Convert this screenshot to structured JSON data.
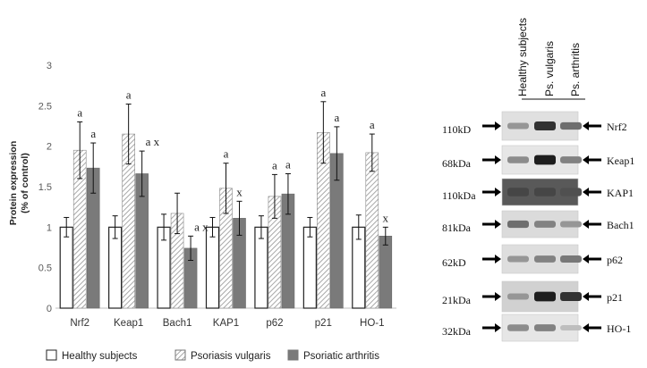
{
  "chart_data": {
    "type": "bar",
    "ylabel_line1": "Protein expression",
    "ylabel_line2": "(% of control)",
    "ylim": [
      0,
      3
    ],
    "yticks": [
      "0",
      "0.5",
      "1",
      "1.5",
      "2",
      "2.5",
      "3"
    ],
    "grid": false,
    "legend_position": "bottom",
    "categories": [
      "Nrf2",
      "Keap1",
      "Bach1",
      "KAP1",
      "p62",
      "p21",
      "HO-1"
    ],
    "series": [
      {
        "name": "Healthy subjects",
        "values": [
          1.0,
          1.0,
          1.0,
          1.0,
          1.0,
          1.0,
          1.0
        ],
        "errors": [
          0.12,
          0.14,
          0.16,
          0.12,
          0.14,
          0.12,
          0.15
        ],
        "labels": [
          "",
          "",
          "",
          "",
          "",
          "",
          ""
        ]
      },
      {
        "name": "Psoriasis vulgaris",
        "values": [
          1.95,
          2.15,
          1.17,
          1.48,
          1.38,
          2.17,
          1.92
        ],
        "errors": [
          0.35,
          0.37,
          0.25,
          0.31,
          0.27,
          0.38,
          0.23
        ],
        "labels": [
          "a",
          "a",
          "",
          "a",
          "a",
          "a",
          "a"
        ]
      },
      {
        "name": "Psoriatic arthritis",
        "values": [
          1.73,
          1.66,
          0.74,
          1.11,
          1.41,
          1.91,
          0.89
        ],
        "errors": [
          0.31,
          0.28,
          0.15,
          0.21,
          0.25,
          0.33,
          0.11
        ],
        "labels": [
          "a",
          "a x",
          "a x",
          "x",
          "a",
          "a",
          "x"
        ]
      }
    ]
  },
  "colors": {
    "healthy": "#ffffff",
    "vulgaris_hatch": "#b0b0b0",
    "arthritis": "#7a7a7a"
  },
  "blot": {
    "headers": [
      "Healthy subjects",
      "Ps. vulgaris",
      "Ps. arthritis"
    ],
    "rows": [
      {
        "mw": "110kD",
        "protein": "Nrf2",
        "intensity": [
          0.35,
          0.85,
          0.55
        ],
        "bg": 0.88
      },
      {
        "mw": "68kDa",
        "protein": "Keap1",
        "intensity": [
          0.4,
          0.95,
          0.45
        ],
        "bg": 0.9
      },
      {
        "mw": "110kDa",
        "protein": "KAP1",
        "intensity": [
          0.75,
          0.75,
          0.7
        ],
        "bg": 0.35
      },
      {
        "mw": "81kDa",
        "protein": "Bach1",
        "intensity": [
          0.55,
          0.45,
          0.35
        ],
        "bg": 0.86
      },
      {
        "mw": "62kD",
        "protein": "p62",
        "intensity": [
          0.35,
          0.45,
          0.5
        ],
        "bg": 0.87
      },
      {
        "mw": "21kDa",
        "protein": "p21",
        "intensity": [
          0.35,
          0.95,
          0.85
        ],
        "bg": 0.82
      },
      {
        "mw": "32kDa",
        "protein": "HO-1",
        "intensity": [
          0.4,
          0.45,
          0.15
        ],
        "bg": 0.9
      }
    ]
  }
}
